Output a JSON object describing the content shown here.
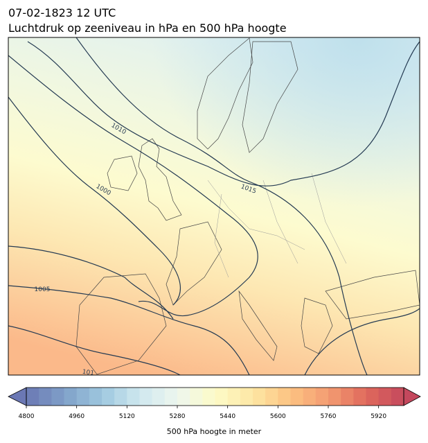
{
  "title": "07-02-1823 12 UTC",
  "subtitle": "Luchtdruk op zeeniveau in hPa en 500 hPa hoogte",
  "isobar_labels": [
    "1010",
    "1000",
    "1015",
    "1005",
    "101"
  ],
  "colorbar": {
    "label": "500 hPa hoogte in meter",
    "colormap": "RdYlBu_r",
    "lim": [
      4800,
      6000
    ],
    "ticks": [
      4800,
      4960,
      5120,
      5280,
      5440,
      5600,
      5760,
      5920
    ]
  }
}
